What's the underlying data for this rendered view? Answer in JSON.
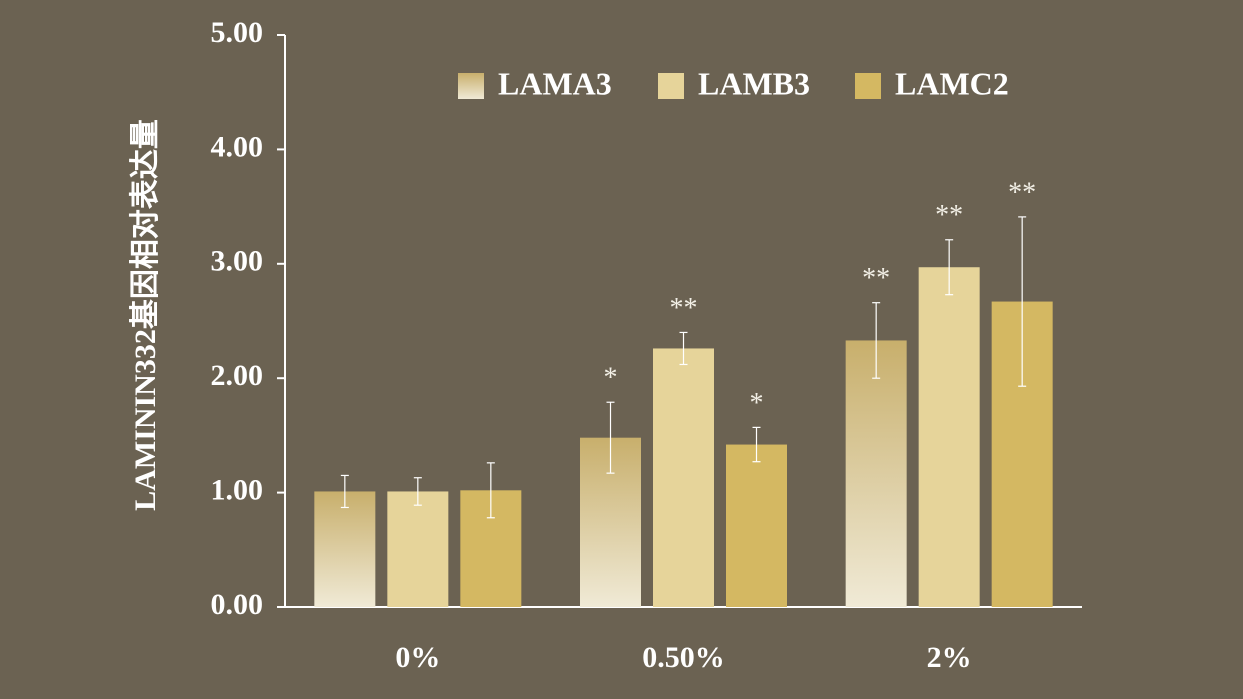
{
  "chart_data": {
    "type": "bar",
    "y_label": "LAMININ332基因相对表达量",
    "categories": [
      "0%",
      "0.50%",
      "2%"
    ],
    "series": [
      {
        "name": "LAMA3",
        "color": "#c8af6c",
        "gradient_end": "#f0ead6",
        "values": [
          1.01,
          1.48,
          2.33
        ],
        "errors": [
          0.14,
          0.31,
          0.33
        ],
        "annotations": [
          null,
          "*",
          "**"
        ]
      },
      {
        "name": "LAMB3",
        "color": "#e6d49a",
        "values": [
          1.01,
          2.26,
          2.97
        ],
        "errors": [
          0.12,
          0.14,
          0.24
        ],
        "annotations": [
          null,
          "**",
          "**"
        ]
      },
      {
        "name": "LAMC2",
        "color": "#d4b862",
        "values": [
          1.02,
          1.42,
          2.67
        ],
        "errors": [
          0.24,
          0.15,
          0.74
        ],
        "annotations": [
          null,
          "*",
          "**"
        ]
      }
    ],
    "ylim": [
      0,
      5
    ],
    "yticks": [
      {
        "value": 0,
        "label": "0.00"
      },
      {
        "value": 1,
        "label": "1.00"
      },
      {
        "value": 2,
        "label": "2.00"
      },
      {
        "value": 3,
        "label": "3.00"
      },
      {
        "value": 4,
        "label": "4.00"
      },
      {
        "value": 5,
        "label": "5.00"
      }
    ],
    "legend": "top-right",
    "grid": false
  }
}
